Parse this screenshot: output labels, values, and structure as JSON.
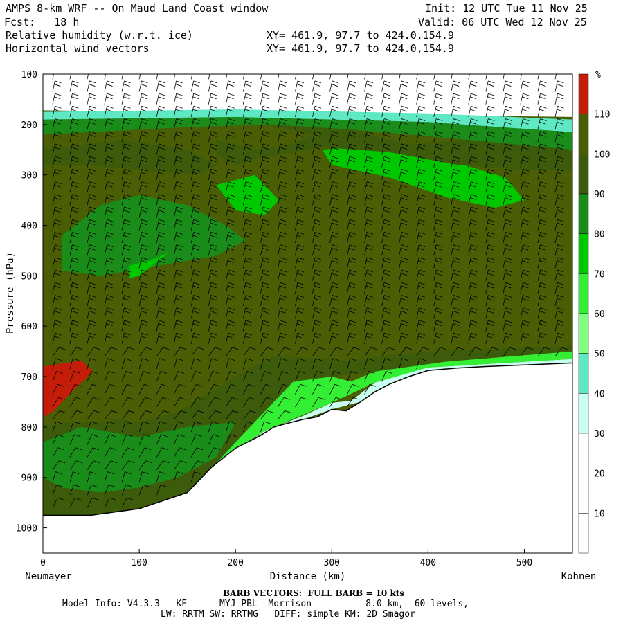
{
  "header": {
    "title": "AMPS 8-km WRF -- Qn Maud Land Coast window",
    "init": "Init: 12 UTC Tue 11 Nov 25",
    "fcst": "Fcst:   18 h",
    "valid": "Valid: 06 UTC Wed 12 Nov 25",
    "field1": "Relative humidity (w.r.t. ice)",
    "field2": "Horizontal wind vectors",
    "xy1": "XY= 461.9, 97.7 to 424.0,154.9",
    "xy2": "XY= 461.9, 97.7 to 424.0,154.9"
  },
  "footer": {
    "barb": "BARB VECTORS:  FULL BARB = 10 kts",
    "model1": "Model Info: V4.3.3   KF      MYJ PBL  Morrison          8.0 km,  60 levels,",
    "model2": "LW: RRTM SW: RRTMG   DIFF: simple KM: 2D Smagor"
  },
  "chart_data": {
    "type": "heatmap",
    "xlabel": "Distance (km)",
    "ylabel": "Pressure (hPa)",
    "x_left_label": "Neumayer",
    "x_right_label": "Kohnen",
    "xlim": [
      0,
      550
    ],
    "ylim": [
      1050,
      100
    ],
    "x_ticks": [
      0,
      100,
      200,
      300,
      400,
      500
    ],
    "y_ticks": [
      100,
      200,
      300,
      400,
      500,
      600,
      700,
      800,
      900,
      1000
    ],
    "colorbar": {
      "unit": "%",
      "levels": [
        10,
        20,
        30,
        40,
        50,
        60,
        70,
        80,
        90,
        100,
        110
      ],
      "colors": [
        "#ffffff",
        "#ffffff",
        "#ffffff",
        "#c8fff0",
        "#5fe8c4",
        "#80ff80",
        "#33ee33",
        "#00c800",
        "#1a8c1a",
        "#3d5c0b",
        "#4a5e06",
        "#c41e0a"
      ]
    },
    "terrain": [
      [
        0,
        975
      ],
      [
        50,
        975
      ],
      [
        100,
        962
      ],
      [
        150,
        930
      ],
      [
        175,
        880
      ],
      [
        200,
        842
      ],
      [
        225,
        818
      ],
      [
        240,
        800
      ],
      [
        255,
        792
      ],
      [
        270,
        785
      ],
      [
        285,
        780
      ],
      [
        300,
        765
      ],
      [
        315,
        768
      ],
      [
        330,
        750
      ],
      [
        345,
        730
      ],
      [
        360,
        715
      ],
      [
        380,
        700
      ],
      [
        400,
        688
      ],
      [
        430,
        683
      ],
      [
        460,
        680
      ],
      [
        500,
        677
      ],
      [
        550,
        673
      ]
    ],
    "regions": [
      {
        "level": 30,
        "poly": [
          [
            130,
            960
          ],
          [
            180,
            870
          ],
          [
            230,
            808
          ],
          [
            270,
            778
          ],
          [
            300,
            752
          ],
          [
            320,
            748
          ],
          [
            345,
            712
          ],
          [
            370,
            692
          ],
          [
            400,
            682
          ],
          [
            550,
            665
          ],
          [
            550,
            673
          ],
          [
            400,
            688
          ],
          [
            360,
            715
          ],
          [
            330,
            750
          ],
          [
            300,
            765
          ],
          [
            270,
            785
          ],
          [
            240,
            800
          ],
          [
            200,
            842
          ],
          [
            150,
            930
          ]
        ]
      },
      {
        "level": 60,
        "poly": [
          [
            150,
            935
          ],
          [
            200,
            830
          ],
          [
            235,
            760
          ],
          [
            260,
            710
          ],
          [
            280,
            690
          ],
          [
            300,
            700
          ],
          [
            320,
            710
          ],
          [
            345,
            690
          ],
          [
            375,
            678
          ],
          [
            420,
            670
          ],
          [
            550,
            650
          ],
          [
            550,
            665
          ],
          [
            400,
            682
          ],
          [
            345,
            712
          ],
          [
            300,
            752
          ],
          [
            230,
            808
          ],
          [
            180,
            870
          ],
          [
            150,
            925
          ]
        ]
      },
      {
        "level": 90,
        "poly": [
          [
            0,
            975
          ],
          [
            0,
            800
          ],
          [
            50,
            780
          ],
          [
            100,
            790
          ],
          [
            140,
            770
          ],
          [
            200,
            700
          ],
          [
            240,
            660
          ],
          [
            270,
            650
          ],
          [
            310,
            670
          ],
          [
            350,
            660
          ],
          [
            400,
            650
          ],
          [
            550,
            640
          ],
          [
            550,
            650
          ],
          [
            420,
            670
          ],
          [
            345,
            690
          ],
          [
            300,
            700
          ],
          [
            260,
            710
          ],
          [
            235,
            760
          ],
          [
            200,
            830
          ],
          [
            150,
            935
          ],
          [
            100,
            962
          ],
          [
            50,
            975
          ]
        ]
      },
      {
        "level": 100,
        "poly": [
          [
            0,
            300
          ],
          [
            40,
            290
          ],
          [
            100,
            300
          ],
          [
            150,
            320
          ],
          [
            180,
            360
          ],
          [
            200,
            390
          ],
          [
            230,
            420
          ],
          [
            260,
            400
          ],
          [
            290,
            320
          ],
          [
            330,
            290
          ],
          [
            380,
            280
          ],
          [
            430,
            295
          ],
          [
            480,
            300
          ],
          [
            520,
            295
          ],
          [
            550,
            300
          ],
          [
            550,
            640
          ],
          [
            400,
            650
          ],
          [
            300,
            665
          ],
          [
            240,
            660
          ],
          [
            180,
            720
          ],
          [
            130,
            770
          ],
          [
            60,
            790
          ],
          [
            0,
            790
          ]
        ]
      },
      {
        "level": 80,
        "poly": [
          [
            20,
            420
          ],
          [
            60,
            360
          ],
          [
            100,
            340
          ],
          [
            150,
            360
          ],
          [
            190,
            400
          ],
          [
            210,
            430
          ],
          [
            180,
            460
          ],
          [
            120,
            480
          ],
          [
            60,
            500
          ],
          [
            20,
            490
          ]
        ]
      },
      {
        "level": 80,
        "poly": [
          [
            0,
            830
          ],
          [
            40,
            800
          ],
          [
            100,
            820
          ],
          [
            150,
            800
          ],
          [
            200,
            790
          ],
          [
            180,
            860
          ],
          [
            140,
            900
          ],
          [
            100,
            920
          ],
          [
            60,
            930
          ],
          [
            20,
            920
          ],
          [
            0,
            900
          ]
        ]
      },
      {
        "level": 110,
        "poly": [
          [
            0,
            680
          ],
          [
            40,
            668
          ],
          [
            52,
            690
          ],
          [
            30,
            730
          ],
          [
            10,
            770
          ],
          [
            0,
            780
          ]
        ]
      },
      {
        "level": 70,
        "poly": [
          [
            90,
            480
          ],
          [
            110,
            470
          ],
          [
            130,
            455
          ],
          [
            100,
            500
          ],
          [
            90,
            505
          ]
        ]
      },
      {
        "level": 70,
        "poly": [
          [
            180,
            320
          ],
          [
            220,
            300
          ],
          [
            245,
            350
          ],
          [
            230,
            380
          ],
          [
            200,
            370
          ]
        ]
      },
      {
        "level": 70,
        "poly": [
          [
            290,
            250
          ],
          [
            350,
            240
          ],
          [
            420,
            270
          ],
          [
            480,
            305
          ],
          [
            500,
            350
          ],
          [
            470,
            365
          ],
          [
            420,
            345
          ],
          [
            360,
            305
          ],
          [
            300,
            280
          ]
        ]
      },
      {
        "level": 90,
        "poly": [
          [
            0,
            250
          ],
          [
            80,
            230
          ],
          [
            150,
            250
          ],
          [
            180,
            280
          ],
          [
            160,
            300
          ],
          [
            100,
            290
          ],
          [
            40,
            280
          ],
          [
            0,
            280
          ]
        ]
      },
      {
        "level": 90,
        "poly": [
          [
            180,
            230
          ],
          [
            240,
            200
          ],
          [
            320,
            210
          ],
          [
            380,
            240
          ],
          [
            440,
            230
          ],
          [
            520,
            240
          ],
          [
            550,
            250
          ],
          [
            550,
            290
          ],
          [
            500,
            290
          ],
          [
            430,
            280
          ],
          [
            360,
            255
          ],
          [
            290,
            245
          ],
          [
            230,
            265
          ],
          [
            200,
            280
          ],
          [
            180,
            260
          ]
        ]
      },
      {
        "level": 100,
        "poly": [
          [
            180,
            230
          ],
          [
            230,
            200
          ],
          [
            280,
            220
          ],
          [
            260,
            240
          ],
          [
            220,
            250
          ]
        ]
      },
      {
        "level": 80,
        "poly": [
          [
            0,
            190
          ],
          [
            200,
            185
          ],
          [
            400,
            195
          ],
          [
            550,
            215
          ],
          [
            550,
            250
          ],
          [
            440,
            230
          ],
          [
            320,
            210
          ],
          [
            240,
            200
          ],
          [
            150,
            205
          ],
          [
            0,
            220
          ]
        ]
      },
      {
        "level": 40,
        "poly": [
          [
            0,
            175
          ],
          [
            200,
            170
          ],
          [
            400,
            178
          ],
          [
            550,
            190
          ],
          [
            550,
            215
          ],
          [
            400,
            195
          ],
          [
            200,
            185
          ],
          [
            0,
            190
          ]
        ]
      }
    ]
  }
}
